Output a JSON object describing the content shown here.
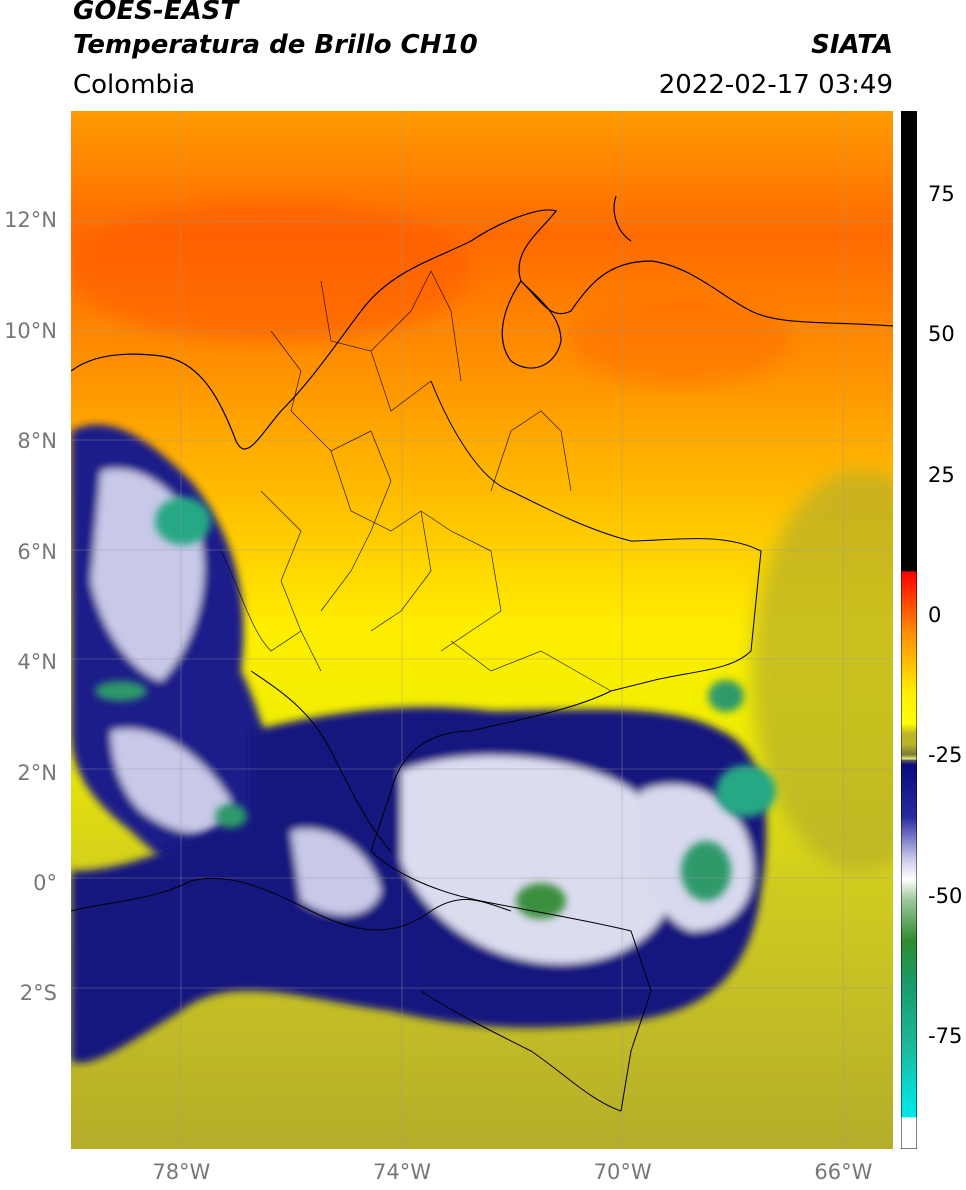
{
  "header": {
    "satellite": "GOES-EAST",
    "product": "Temperatura de Brillo CH10",
    "brand": "SIATA",
    "region": "Colombia",
    "timestamp": "2022-02-17 03:49"
  },
  "map": {
    "projection": "lat/lon",
    "lon_range": [
      -80,
      -65.1
    ],
    "lat_range": [
      -4.8,
      14
    ],
    "lat_ticks": [
      {
        "value": 12,
        "label": "12°N"
      },
      {
        "value": 10,
        "label": "10°N"
      },
      {
        "value": 8,
        "label": "8°N"
      },
      {
        "value": 6,
        "label": "6°N"
      },
      {
        "value": 4,
        "label": "4°N"
      },
      {
        "value": 2,
        "label": "2°N"
      },
      {
        "value": 0,
        "label": "0°"
      },
      {
        "value": -2,
        "label": "2°S"
      }
    ],
    "lon_ticks": [
      {
        "value": -78,
        "label": "78°W"
      },
      {
        "value": -74,
        "label": "74°W"
      },
      {
        "value": -70,
        "label": "70°W"
      },
      {
        "value": -66,
        "label": "66°W"
      }
    ],
    "grid": true
  },
  "colorbar": {
    "range": [
      -95,
      90
    ],
    "ticks": [
      {
        "value": 75,
        "label": "75"
      },
      {
        "value": 50,
        "label": "50"
      },
      {
        "value": 25,
        "label": "25"
      },
      {
        "value": 0,
        "label": "0"
      },
      {
        "value": -25,
        "label": "-25"
      },
      {
        "value": -50,
        "label": "-50"
      },
      {
        "value": -75,
        "label": "-75"
      }
    ],
    "colors": {
      "warm": "#000000",
      "red": "#ff0000",
      "orange": "#ff9900",
      "yellow": "#ffff00",
      "olive": "#bcb52a",
      "navy": "#0a0a80",
      "white": "#ffffff",
      "green": "#2e8b2e",
      "teal": "#1cb89a",
      "cyan": "#00e5e5"
    }
  }
}
